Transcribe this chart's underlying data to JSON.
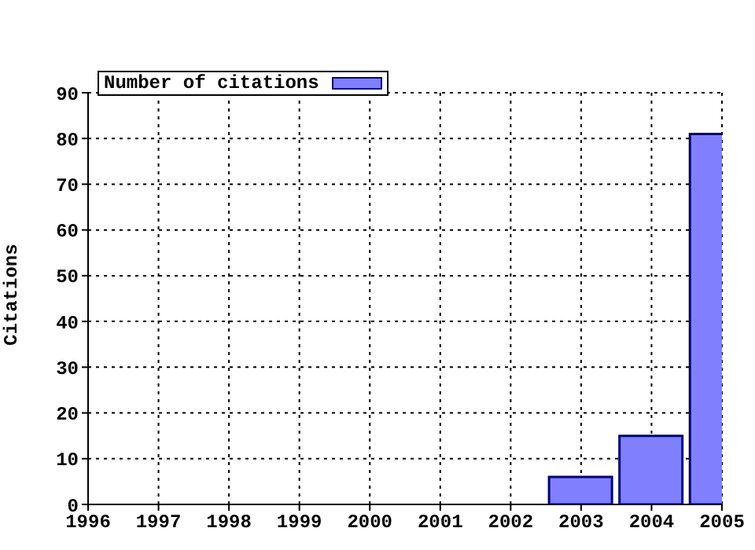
{
  "chart_data": {
    "type": "bar",
    "ylabel": "Citations",
    "x": [
      2003,
      2004,
      2005
    ],
    "series": [
      {
        "name": "Number of citations",
        "color": "#8080ff",
        "values": [
          6,
          15,
          81
        ]
      }
    ],
    "xlim": [
      1996,
      2005
    ],
    "xticks": [
      1996,
      1997,
      1998,
      1999,
      2000,
      2001,
      2002,
      2003,
      2004,
      2005
    ],
    "ylim": [
      0,
      90
    ],
    "yticks": [
      0,
      10,
      20,
      30,
      40,
      50,
      60,
      70,
      80,
      90
    ],
    "grid": true,
    "legend": "top left"
  }
}
